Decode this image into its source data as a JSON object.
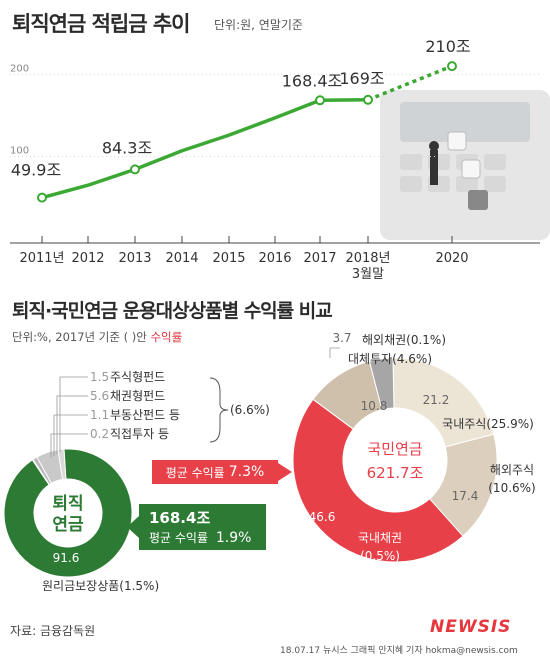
{
  "header": {
    "title": "퇴직연금 적립금 추이",
    "unit": "단위:원, 연말기준"
  },
  "chart_data": [
    {
      "type": "line",
      "title": "퇴직연금 적립금 추이",
      "unit": "단위:원, 연말기준",
      "categories": [
        "2011년",
        "2012",
        "2013",
        "2014",
        "2015",
        "2016",
        "2017",
        "2018년\n3월말",
        "2020"
      ],
      "series": [
        {
          "values": [
            49.9,
            65,
            84.3,
            107,
            126,
            147,
            168.4,
            169,
            210
          ],
          "labels": [
            "49.9조",
            null,
            "84.3조",
            null,
            null,
            null,
            "168.4조",
            "169조",
            "210조"
          ]
        }
      ],
      "projected_segment": [
        "2018년\n3월말",
        "2020"
      ],
      "yticks": [
        100,
        200
      ],
      "ylim": [
        30,
        215
      ],
      "grid": false,
      "line_color": "#3aa832"
    },
    {
      "type": "pie",
      "title": "퇴직·국민연금 운용대상상품별 수익률 비교",
      "unit_note": "단위:%, 2017년 기준 ( )안 수익률",
      "charts": [
        {
          "name": "퇴직연금",
          "center_labels": [
            "퇴직",
            "연금"
          ],
          "total": "168.4조",
          "average_return": "평균 수익률 1.9%",
          "slices": [
            {
              "label": "주식형펀드",
              "value": 1.5,
              "value_label": "1.5",
              "color": "#d9d9d9"
            },
            {
              "label": "채권형펀드",
              "value": 5.6,
              "value_label": "5.6",
              "color": "#c9c9c9"
            },
            {
              "label": "부동산펀드 등",
              "value": 1.1,
              "value_label": "1.1",
              "color": "#b9b9b9"
            },
            {
              "label": "직접투자 등",
              "value": 0.2,
              "value_label": "0.2",
              "color": "#a9a9a9"
            },
            {
              "label": "원리금보장상품(1.5%)",
              "value": 91.6,
              "value_label": "91.6",
              "color": "#2c7a34"
            }
          ],
          "group_return": "(6.6%)"
        },
        {
          "name": "국민연금",
          "center_labels": [
            "국민연금",
            "621.7조"
          ],
          "average_return": "평균 수익률 7.3%",
          "slices": [
            {
              "label": "국내주식(25.9%)",
              "value": 21.2,
              "value_label": "21.2",
              "color": "#ece5d6"
            },
            {
              "label": "해외주식(10.6%)",
              "value": 17.4,
              "value_label": "17.4",
              "color": "#dccfbd"
            },
            {
              "label": "국내채권(0.5%)",
              "value": 46.6,
              "value_label": "46.6",
              "color": "#e84048"
            },
            {
              "label": "대체투자(4.6%)",
              "value": 10.8,
              "value_label": "10.8",
              "color": "#cfc0ab"
            },
            {
              "label": "해외채권(0.1%)",
              "value": 3.7,
              "value_label": "3.7",
              "color": "#a6a6a6"
            }
          ]
        }
      ]
    }
  ],
  "section2": {
    "title": "퇴직·국민연금 운용대상상품별 수익률 비교",
    "unit_prefix": "단위:%, 2017년 기준 ( )안 ",
    "unit_highlight": "수익률"
  },
  "callouts": {
    "nps_avg_prefix": "평균 수익률 ",
    "nps_avg_value": "7.3%",
    "rp_total": "168.4조",
    "rp_avg_prefix": "평균 수익률 ",
    "rp_avg_value": "1.9%"
  },
  "footer": {
    "source": "자료: 금융감독원",
    "credit": "18.07.17 뉴시스 그래픽 안지혜 기자 hokma@newsis.com",
    "logo": "NEWSIS"
  },
  "colors": {
    "green": "#2c7a34",
    "line_green": "#3aa832",
    "red": "#e84048"
  }
}
